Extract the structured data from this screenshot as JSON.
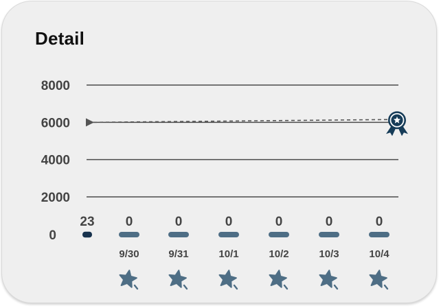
{
  "card": {
    "title": "Detail"
  },
  "chart_data": {
    "type": "bar",
    "y_ticks": [
      {
        "value": 8000,
        "label": "8000"
      },
      {
        "value": 6000,
        "label": "6000"
      },
      {
        "value": 4000,
        "label": "4000"
      },
      {
        "value": 2000,
        "label": "2000"
      },
      {
        "value": 0,
        "label": "0"
      }
    ],
    "categories": [
      "",
      "9/30",
      "9/31",
      "10/1",
      "10/2",
      "10/3",
      "10/4"
    ],
    "values": [
      23,
      0,
      0,
      0,
      0,
      0,
      0
    ],
    "value_labels": [
      "23",
      "0",
      "0",
      "0",
      "0",
      "0",
      "0"
    ],
    "goal": {
      "value": 6000,
      "end_value": 6150,
      "icon": "award-ribbon-icon"
    },
    "day_icons": [
      "",
      "magic-star-icon",
      "magic-star-icon",
      "magic-star-icon",
      "magic-star-icon",
      "magic-star-icon",
      "magic-star-icon"
    ],
    "grid": true,
    "colors": {
      "bar_current": "#17324d",
      "bar_other": "#4e6e85",
      "grid": "#4a4a4a",
      "goal_line": "#555555",
      "award": "#163c58",
      "wand_star": "#4e6e85"
    }
  }
}
